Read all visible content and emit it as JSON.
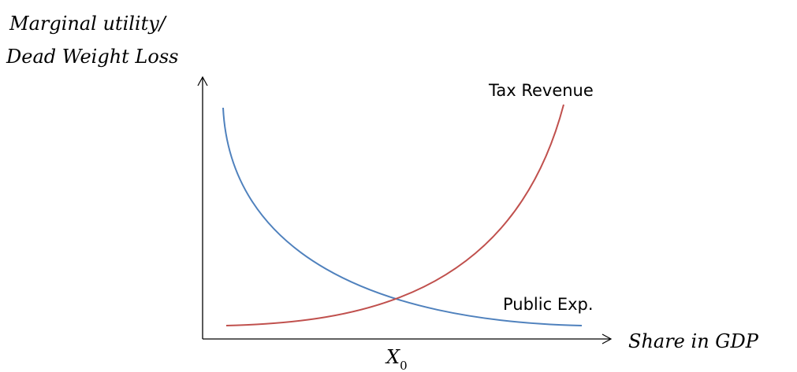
{
  "y_axis_label": {
    "line1": "Marginal utility/",
    "line2": "Dead Weight Loss"
  },
  "x_axis_label": "Share in GDP",
  "curves": [
    {
      "label": "Tax Revenue"
    },
    {
      "label": "Public Exp."
    }
  ],
  "x_marker": {
    "label": "X",
    "subscript": "0"
  }
}
